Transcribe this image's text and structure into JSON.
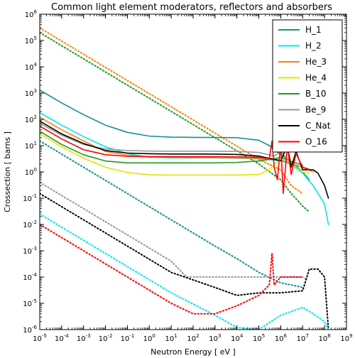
{
  "chart_data": {
    "type": "line",
    "title": "Common light element moderators, reflectors and absorbers",
    "xlabel": "Neutron Energy [ eV ]",
    "ylabel": "Crossection [ barns ]",
    "xscale": "log",
    "yscale": "log",
    "xlim": [
      1e-05,
      1000000000.0
    ],
    "ylim": [
      1e-06,
      1000000.0
    ],
    "legend_position": "top-right",
    "grid": false,
    "series": [
      {
        "name": "H_1",
        "color": "#178f8f",
        "values": [
          [
            1e-05,
            1300
          ],
          [
            0.0001,
            420
          ],
          [
            0.001,
            150
          ],
          [
            0.01,
            60
          ],
          [
            0.1,
            32
          ],
          [
            1,
            23
          ],
          [
            10,
            21
          ],
          [
            100,
            20.6
          ],
          [
            1000.0,
            20.4
          ],
          [
            10000.0,
            20
          ],
          [
            100000.0,
            16
          ],
          [
            300000.0,
            10
          ],
          [
            1000000.0,
            4.5
          ],
          [
            3000000.0,
            2.5
          ],
          [
            10000000.0,
            1.0
          ],
          [
            20000000.0,
            0.5
          ]
        ]
      },
      {
        "name": "H_2",
        "color": "#00e5ee",
        "values": [
          [
            1e-05,
            180
          ],
          [
            0.0001,
            60
          ],
          [
            0.001,
            22
          ],
          [
            0.01,
            9
          ],
          [
            0.1,
            5
          ],
          [
            1,
            3.6
          ],
          [
            10,
            3.4
          ],
          [
            100,
            3.4
          ],
          [
            1000.0,
            3.4
          ],
          [
            10000.0,
            3.3
          ],
          [
            100000.0,
            3.1
          ],
          [
            1000000.0,
            2.7
          ],
          [
            3000000.0,
            1.9
          ],
          [
            10000000.0,
            0.9
          ],
          [
            30000000.0,
            0.3
          ],
          [
            100000000.0,
            0.06
          ],
          [
            150000000.0,
            0.01
          ]
        ]
      },
      {
        "name": "He_3",
        "color": "#ff7f0e",
        "values": [
          [
            1e-05,
            120
          ],
          [
            0.0001,
            40
          ],
          [
            0.001,
            15
          ],
          [
            0.01,
            6
          ],
          [
            0.1,
            4.3
          ],
          [
            1,
            3.8
          ],
          [
            10,
            3.6
          ],
          [
            100,
            3.5
          ],
          [
            1000.0,
            3.5
          ],
          [
            10000.0,
            3.4
          ],
          [
            100000.0,
            3.3
          ],
          [
            1000000.0,
            2.9
          ],
          [
            10000000.0,
            1.5
          ],
          [
            30000000.0,
            1.0
          ]
        ]
      },
      {
        "name": "He_4",
        "color": "#e5e500",
        "values": [
          [
            1e-05,
            28
          ],
          [
            0.0001,
            9
          ],
          [
            0.001,
            3.3
          ],
          [
            0.01,
            1.5
          ],
          [
            0.1,
            0.95
          ],
          [
            1,
            0.77
          ],
          [
            10,
            0.76
          ],
          [
            100,
            0.76
          ],
          [
            1000.0,
            0.76
          ],
          [
            10000.0,
            0.76
          ],
          [
            100000.0,
            0.8
          ],
          [
            300000.0,
            1.2
          ],
          [
            1000000.0,
            3.5
          ],
          [
            2000000.0,
            8
          ],
          [
            3000000.0,
            2
          ],
          [
            10000000.0,
            1.0
          ],
          [
            20000000.0,
            0.9
          ]
        ]
      },
      {
        "name": "B_10",
        "color": "#1f9a1f",
        "values": [
          [
            1e-05,
            35
          ],
          [
            0.0001,
            11
          ],
          [
            0.001,
            4.5
          ],
          [
            0.01,
            2.6
          ],
          [
            0.1,
            2.2
          ],
          [
            1,
            2.2
          ],
          [
            10,
            2.2
          ],
          [
            100,
            2.2
          ],
          [
            1000.0,
            2.2
          ],
          [
            10000.0,
            2.3
          ],
          [
            100000.0,
            2.6
          ],
          [
            1000000.0,
            3.5
          ],
          [
            3000000.0,
            2.5
          ],
          [
            10000000.0,
            1.8
          ]
        ]
      },
      {
        "name": "Be_9",
        "color": "#999999",
        "values": [
          [
            1e-05,
            70
          ],
          [
            0.0001,
            25
          ],
          [
            0.001,
            11
          ],
          [
            0.01,
            7.5
          ],
          [
            0.1,
            6.5
          ],
          [
            1,
            6.2
          ],
          [
            10,
            6.1
          ],
          [
            100,
            6.1
          ],
          [
            1000.0,
            6.1
          ],
          [
            10000.0,
            6.0
          ],
          [
            100000.0,
            5.5
          ],
          [
            500000.0,
            4
          ],
          [
            1000000.0,
            6
          ],
          [
            3000000.0,
            2
          ],
          [
            10000000.0,
            1.5
          ],
          [
            20000000.0,
            1.3
          ]
        ]
      },
      {
        "name": "C_Nat",
        "color": "#000000",
        "values": [
          [
            1e-05,
            85
          ],
          [
            0.0001,
            28
          ],
          [
            0.001,
            12
          ],
          [
            0.01,
            6.5
          ],
          [
            0.1,
            5.2
          ],
          [
            1,
            4.9
          ],
          [
            10,
            4.8
          ],
          [
            100,
            4.8
          ],
          [
            1000.0,
            4.75
          ],
          [
            10000.0,
            4.6
          ],
          [
            100000.0,
            4.0
          ],
          [
            500000.0,
            3.0
          ],
          [
            1000000.0,
            2.6
          ],
          [
            2000000.0,
            10
          ],
          [
            3000000.0,
            1.5
          ],
          [
            5000000.0,
            6
          ],
          [
            10000000.0,
            1.2
          ],
          [
            30000000.0,
            1.2
          ],
          [
            50000000.0,
            0.9
          ],
          [
            100000000.0,
            0.3
          ],
          [
            150000000.0,
            0.1
          ]
        ]
      },
      {
        "name": "O_16",
        "color": "#ff0000",
        "values": [
          [
            1e-05,
            55
          ],
          [
            0.0001,
            18
          ],
          [
            0.001,
            7
          ],
          [
            0.01,
            4.5
          ],
          [
            0.1,
            3.9
          ],
          [
            1,
            3.8
          ],
          [
            10,
            3.8
          ],
          [
            100,
            3.8
          ],
          [
            1000.0,
            3.8
          ],
          [
            10000.0,
            3.75
          ],
          [
            100000.0,
            3.6
          ],
          [
            300000.0,
            3.2
          ],
          [
            400000.0,
            15
          ],
          [
            500000.0,
            1.5
          ],
          [
            700000.0,
            0.5
          ],
          [
            1000000.0,
            12
          ],
          [
            1300000.0,
            0.15
          ],
          [
            2000000.0,
            10
          ],
          [
            3000000.0,
            0.8
          ],
          [
            5000000.0,
            5
          ],
          [
            10000000.0,
            1.5
          ],
          [
            20000000.0,
            1.2
          ]
        ]
      },
      {
        "name": "",
        "color": "#ff7f0e",
        "style": "dotted",
        "values": [
          [
            1e-05,
            300000
          ],
          [
            0.001,
            30000
          ],
          [
            0.1,
            3000
          ],
          [
            10,
            300
          ],
          [
            1000.0,
            30
          ],
          [
            100000.0,
            3
          ],
          [
            1000000.0,
            1.2
          ],
          [
            3000000.0,
            0.3
          ],
          [
            10000000.0,
            0.15
          ]
        ]
      },
      {
        "name": "",
        "color": "#1f9a1f",
        "style": "dotted",
        "values": [
          [
            1e-05,
            200000
          ],
          [
            0.001,
            20000
          ],
          [
            0.1,
            2000
          ],
          [
            10,
            200
          ],
          [
            1000.0,
            20
          ],
          [
            100000.0,
            2
          ],
          [
            1000000.0,
            0.5
          ],
          [
            3000000.0,
            0.15
          ],
          [
            10000000.0,
            0.05
          ],
          [
            20000000.0,
            0.03
          ]
        ]
      },
      {
        "name": "",
        "color": "#178f8f",
        "style": "dotted",
        "values": [
          [
            1e-05,
            15
          ],
          [
            0.001,
            1.5
          ],
          [
            0.1,
            0.15
          ],
          [
            10,
            0.015
          ],
          [
            1000.0,
            0.0015
          ],
          [
            10000.0,
            0.0005
          ],
          [
            100000.0,
            0.00015
          ],
          [
            1000000.0,
            6e-05
          ],
          [
            3000000.0,
            5e-05
          ],
          [
            10000000.0,
            4e-05
          ]
        ]
      },
      {
        "name": "",
        "color": "#999999",
        "style": "dotted",
        "values": [
          [
            1e-05,
            0.4
          ],
          [
            0.001,
            0.04
          ],
          [
            0.1,
            0.004
          ],
          [
            10,
            0.0004
          ],
          [
            50,
            0.0001
          ],
          [
            1000.0,
            0.0001
          ],
          [
            100000.0,
            0.0001
          ],
          [
            1000000.0,
            0.0001
          ],
          [
            10000000.0,
            0.0001
          ],
          [
            15000000.0,
            8e-05
          ]
        ]
      },
      {
        "name": "",
        "color": "#000000",
        "style": "dotted",
        "values": [
          [
            1e-05,
            0.15
          ],
          [
            0.001,
            0.015
          ],
          [
            0.1,
            0.0015
          ],
          [
            10,
            0.00015
          ],
          [
            1000.0,
            4e-05
          ],
          [
            10000.0,
            2e-05
          ],
          [
            100000.0,
            2.5e-05
          ],
          [
            1000000.0,
            2.5e-05
          ],
          [
            10000000.0,
            3e-05
          ],
          [
            20000000.0,
            0.0002
          ],
          [
            50000000.0,
            0.0002
          ],
          [
            100000000.0,
            0.0001
          ],
          [
            150000000.0,
            1e-06
          ]
        ]
      },
      {
        "name": "",
        "color": "#00e5ee",
        "style": "dotted",
        "values": [
          [
            1e-05,
            0.025
          ],
          [
            0.001,
            0.0025
          ],
          [
            0.1,
            0.00025
          ],
          [
            10,
            2.5e-05
          ],
          [
            1000.0,
            3.5e-06
          ],
          [
            10000.0,
            1.2e-06
          ],
          [
            100000.0,
            1e-06
          ],
          [
            1000000.0,
            3.5e-06
          ],
          [
            10000000.0,
            7e-06
          ],
          [
            30000000.0,
            4e-06
          ],
          [
            100000000.0,
            2e-06
          ],
          [
            150000000.0,
            1e-06
          ]
        ]
      },
      {
        "name": "",
        "color": "#ff0000",
        "style": "dotted",
        "values": [
          [
            1e-05,
            0.01
          ],
          [
            0.001,
            0.001
          ],
          [
            0.1,
            0.0001
          ],
          [
            10,
            1e-05
          ],
          [
            100,
            4e-06
          ],
          [
            1000.0,
            4e-06
          ],
          [
            10000.0,
            8e-06
          ],
          [
            100000.0,
            2e-05
          ],
          [
            300000.0,
            5e-05
          ],
          [
            400000.0,
            0.0008
          ],
          [
            500000.0,
            5e-05
          ],
          [
            1000000.0,
            0.0001
          ],
          [
            10000000.0,
            0.0001
          ]
        ]
      }
    ]
  }
}
